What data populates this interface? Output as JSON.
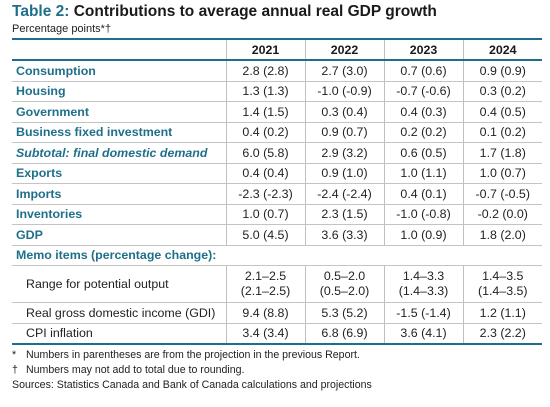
{
  "title_prefix": "Table 2:",
  "title_text": "Contributions to average annual real GDP growth",
  "subtitle": "Percentage points*†",
  "columns": [
    "2021",
    "2022",
    "2023",
    "2024"
  ],
  "rows": [
    {
      "label": "Consumption",
      "values": [
        "2.8 (2.8)",
        "2.7 (3.0)",
        "0.7 (0.6)",
        "0.9 (0.9)"
      ]
    },
    {
      "label": "Housing",
      "values": [
        "1.3 (1.3)",
        "-1.0 (-0.9)",
        "-0.7 (-0.6)",
        "0.3 (0.2)"
      ]
    },
    {
      "label": "Government",
      "values": [
        "1.4 (1.5)",
        "0.3 (0.4)",
        "0.4 (0.3)",
        "0.4 (0.5)"
      ]
    },
    {
      "label": "Business fixed investment",
      "values": [
        "0.4 (0.2)",
        "0.9 (0.7)",
        "0.2 (0.2)",
        "0.1 (0.2)"
      ]
    },
    {
      "label": "Subtotal: final domestic demand",
      "values": [
        "6.0 (5.8)",
        "2.9 (3.2)",
        "0.6 (0.5)",
        "1.7 (1.8)"
      ]
    },
    {
      "label": "Exports",
      "values": [
        "0.4 (0.4)",
        "0.9 (1.0)",
        "1.0 (1.1)",
        "1.0 (0.7)"
      ]
    },
    {
      "label": "Imports",
      "values": [
        "-2.3 (-2.3)",
        "-2.4 (-2.4)",
        "0.4 (0.1)",
        "-0.7 (-0.5)"
      ]
    },
    {
      "label": "Inventories",
      "values": [
        "1.0 (0.7)",
        "2.3 (1.5)",
        "-1.0 (-0.8)",
        "-0.2 (0.0)"
      ]
    },
    {
      "label": "GDP",
      "values": [
        "5.0 (4.5)",
        "3.6 (3.3)",
        "1.0 (0.9)",
        "1.8 (2.0)"
      ]
    }
  ],
  "memo_heading": "Memo items (percentage change):",
  "memo_rows": [
    {
      "label": "Range for potential output",
      "values": [
        [
          "2.1–2.5",
          "(2.1–2.5)"
        ],
        [
          "0.5–2.0",
          "(0.5–2.0)"
        ],
        [
          "1.4–3.3",
          "(1.4–3.3)"
        ],
        [
          "1.4–3.5",
          "(1.4–3.5)"
        ]
      ]
    },
    {
      "label": "Real gross domestic income (GDI)",
      "values": [
        "9.4 (8.8)",
        "5.3 (5.2)",
        "-1.5 (-1.4)",
        "1.2 (1.1)"
      ]
    },
    {
      "label": "CPI inflation",
      "values": [
        "3.4 (3.4)",
        "6.8 (6.9)",
        "3.6 (4.1)",
        "2.3 (2.2)"
      ]
    }
  ],
  "notes": {
    "star_symbol": "*",
    "star_text": "Numbers in parentheses are from the projection in the previous Report.",
    "dagger_symbol": "†",
    "dagger_text": "Numbers may not add to total due to rounding.",
    "sources": "Sources: Statistics Canada and Bank of Canada calculations and projections"
  }
}
